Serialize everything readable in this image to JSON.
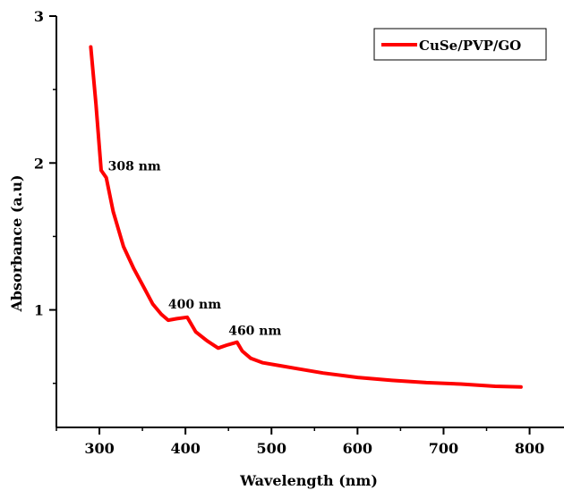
{
  "chart_data": {
    "type": "line",
    "title": "",
    "xlabel": "Wavelength (nm)",
    "ylabel": "Absorbance (a.u)",
    "xlim": [
      250,
      840
    ],
    "ylim": [
      0.2,
      3.0
    ],
    "xticks": [
      300,
      400,
      500,
      600,
      700,
      800
    ],
    "yticks": [
      1,
      2,
      3
    ],
    "grid": false,
    "legend_position": "top-right",
    "colors": {
      "series": "#ff0000",
      "axes": "#000000"
    },
    "series": [
      {
        "name": "CuSe/PVP/GO",
        "x": [
          290,
          296,
          302,
          308,
          316,
          328,
          340,
          352,
          362,
          372,
          380,
          390,
          402,
          412,
          425,
          438,
          448,
          460,
          466,
          476,
          490,
          510,
          530,
          560,
          600,
          640,
          680,
          720,
          760,
          790
        ],
        "y": [
          2.79,
          2.4,
          1.95,
          1.9,
          1.67,
          1.43,
          1.28,
          1.15,
          1.04,
          0.97,
          0.93,
          0.94,
          0.95,
          0.85,
          0.79,
          0.74,
          0.76,
          0.78,
          0.72,
          0.67,
          0.64,
          0.62,
          0.6,
          0.57,
          0.54,
          0.52,
          0.505,
          0.495,
          0.48,
          0.475
        ]
      }
    ],
    "annotations": [
      {
        "text": "308 nm",
        "x": 310,
        "y": 1.95
      },
      {
        "text": "400 nm",
        "x": 380,
        "y": 1.01
      },
      {
        "text": "460 nm",
        "x": 450,
        "y": 0.83
      }
    ]
  }
}
